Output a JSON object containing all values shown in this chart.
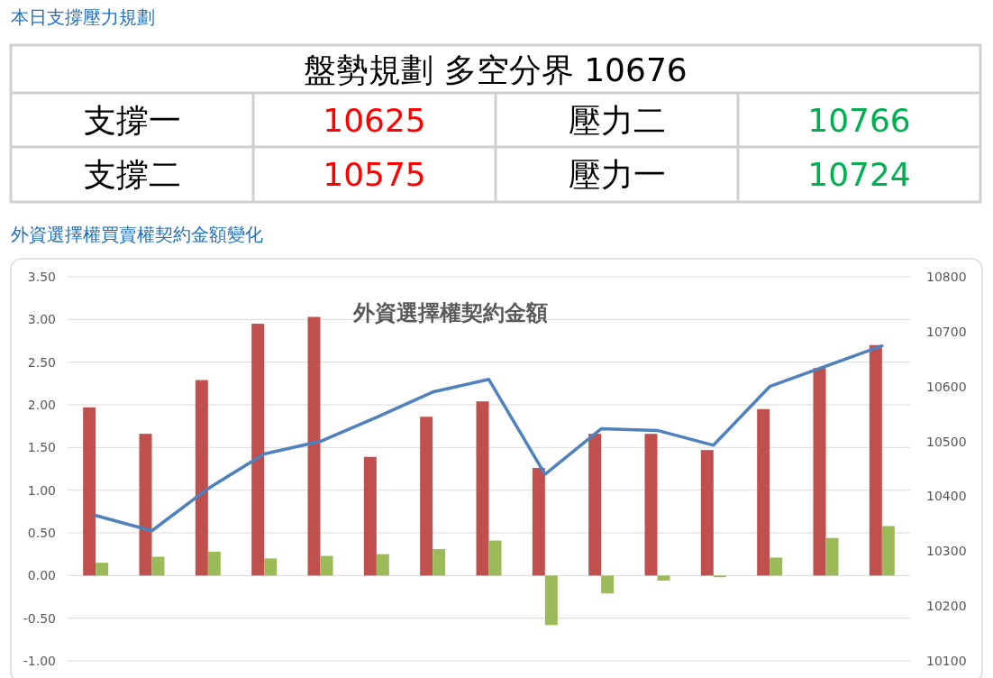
{
  "chart_data": [
    {
      "type": "other",
      "title": "本日支撐壓力規劃",
      "subtitle": "盤勢規劃 多空分界 10676",
      "categories": [
        "支撐一",
        "壓力二",
        "支撐二",
        "壓力一"
      ],
      "values": [
        10625,
        10766,
        10575,
        10724
      ],
      "colors": [
        "#ff0000",
        "#00b050",
        "#ff0000",
        "#00b050"
      ],
      "data_labels": true
    },
    {
      "type": "bar",
      "title": "外資選擇權買賣權契約金額變化",
      "subtitle": "外資選擇權契約金額",
      "categories": [
        null,
        null,
        null,
        null,
        null,
        null,
        null,
        null,
        null,
        null,
        null,
        null,
        null,
        null,
        null
      ],
      "series": [
        {
          "type": "bar",
          "color": "#c0504d",
          "values": [
            1.97,
            1.66,
            2.29,
            2.95,
            3.03,
            1.39,
            1.86,
            2.04,
            1.26,
            1.66,
            1.66,
            1.47,
            1.95,
            2.43,
            2.7
          ]
        },
        {
          "type": "bar",
          "color": "#9bbb59",
          "values": [
            0.15,
            0.22,
            0.28,
            0.2,
            0.23,
            0.25,
            0.31,
            0.41,
            -0.58,
            -0.21,
            -0.06,
            -0.02,
            0.21,
            0.44,
            0.58
          ]
        },
        {
          "type": "line",
          "axis": "y2",
          "color": "#4f81bd",
          "values": [
            10365,
            10337,
            10414,
            10477,
            10500,
            10544,
            10590,
            10613,
            10440,
            10523,
            10520,
            10493,
            10600,
            10637,
            10674
          ]
        }
      ],
      "ylim": [
        -1,
        3.5
      ],
      "yticks": [
        {
          "value": -1,
          "label": "-1.00"
        },
        {
          "value": -0.5,
          "label": "-0.50"
        },
        {
          "value": 0,
          "label": "0.00"
        },
        {
          "value": 0.5,
          "label": "0.50"
        },
        {
          "value": 1,
          "label": "1.00"
        },
        {
          "value": 1.5,
          "label": "1.50"
        },
        {
          "value": 2,
          "label": "2.00"
        },
        {
          "value": 2.5,
          "label": "2.50"
        },
        {
          "value": 3,
          "label": "3.00"
        },
        {
          "value": 3.5,
          "label": "3.50"
        }
      ],
      "y2lim": [
        10100,
        10800
      ],
      "y2ticks": [
        10100,
        10200,
        10300,
        10400,
        10500,
        10600,
        10700,
        10800
      ],
      "grid": "y",
      "line_style": "solid",
      "marker": "none"
    }
  ]
}
